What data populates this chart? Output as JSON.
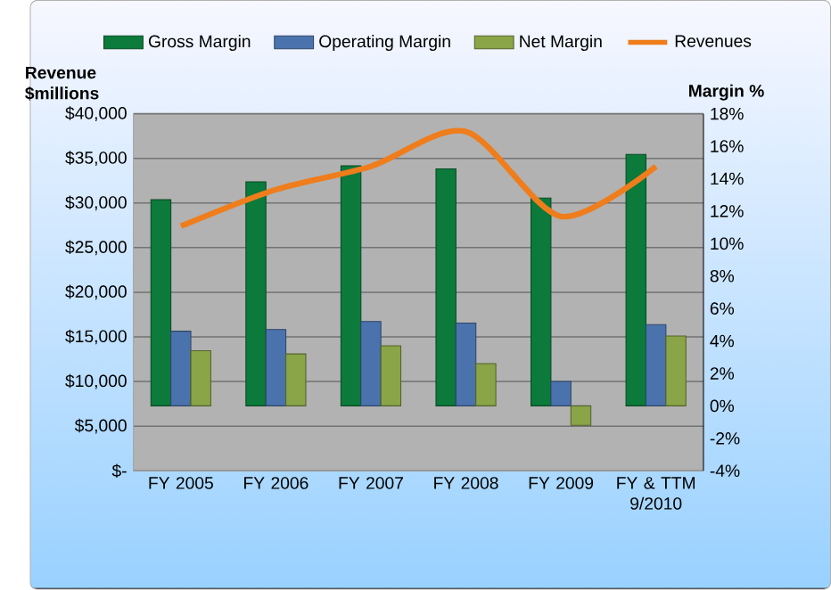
{
  "chart_data": {
    "type": "bar",
    "ylabel": "Revenue $millions",
    "y2label": "Margin %",
    "categories": [
      "FY 2005",
      "FY 2006",
      "FY 2007",
      "FY 2008",
      "FY 2009",
      "FY & TTM 9/2010"
    ],
    "series": [
      {
        "name": "Gross Margin",
        "color": "#0b7a3b",
        "axis": "y2",
        "values": [
          12.7,
          13.8,
          14.8,
          14.6,
          12.8,
          15.5
        ]
      },
      {
        "name": "Operating Margin",
        "color": "#4a73ad",
        "axis": "y2",
        "values": [
          4.6,
          4.7,
          5.2,
          5.1,
          1.5,
          5.0
        ]
      },
      {
        "name": "Net Margin",
        "color": "#8aa448",
        "axis": "y2",
        "values": [
          3.4,
          3.2,
          3.7,
          2.6,
          -1.2,
          4.3
        ]
      },
      {
        "name": "Revenues",
        "type": "line",
        "color": "#ef7d1c",
        "values": [
          27400,
          31500,
          34100,
          38000,
          28500,
          34100
        ]
      }
    ],
    "ylim": [
      0,
      40000
    ],
    "yticks": [
      {
        "value": 0,
        "label": "$-"
      },
      {
        "value": 5000,
        "label": "$5,000"
      },
      {
        "value": 10000,
        "label": "$10,000"
      },
      {
        "value": 15000,
        "label": "$15,000"
      },
      {
        "value": 20000,
        "label": "$20,000"
      },
      {
        "value": 25000,
        "label": "$25,000"
      },
      {
        "value": 30000,
        "label": "$30,000"
      },
      {
        "value": 35000,
        "label": "$35,000"
      },
      {
        "value": 40000,
        "label": "$40,000"
      }
    ],
    "y2lim": [
      -4,
      18
    ],
    "y2ticks": [
      {
        "value": -4,
        "label": "-4%"
      },
      {
        "value": -2,
        "label": "-2%"
      },
      {
        "value": 0,
        "label": "0%"
      },
      {
        "value": 2,
        "label": "2%"
      },
      {
        "value": 4,
        "label": "4%"
      },
      {
        "value": 6,
        "label": "6%"
      },
      {
        "value": 8,
        "label": "8%"
      },
      {
        "value": 10,
        "label": "10%"
      },
      {
        "value": 12,
        "label": "12%"
      },
      {
        "value": 14,
        "label": "14%"
      },
      {
        "value": 16,
        "label": "16%"
      },
      {
        "value": 18,
        "label": "18%"
      }
    ],
    "grid": "y",
    "legend": "top",
    "marker": "none"
  }
}
